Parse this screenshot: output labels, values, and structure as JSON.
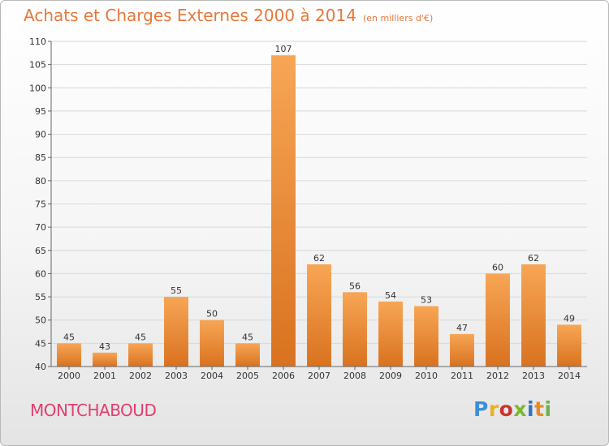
{
  "title": "Achats et Charges Externes 2000 à 2014",
  "subtitle": "(en milliers d'€)",
  "commune": "MONTCHABOUD",
  "logo": {
    "text": "Proxiti",
    "letters": [
      "P",
      "r",
      "o",
      "x",
      "i",
      "t",
      "i"
    ]
  },
  "colors": {
    "title": "#e8773a",
    "commune": "#e04070",
    "bar_light": "#f7a655",
    "bar_dark": "#d9721f",
    "grid": "#d8d8d8"
  },
  "chart_data": {
    "type": "bar",
    "title": "Achats et Charges Externes 2000 à 2014",
    "subtitle": "(en milliers d'€)",
    "categories": [
      "2000",
      "2001",
      "2002",
      "2003",
      "2004",
      "2005",
      "2006",
      "2007",
      "2008",
      "2009",
      "2010",
      "2011",
      "2012",
      "2013",
      "2014"
    ],
    "values": [
      45,
      43,
      45,
      55,
      50,
      45,
      107,
      62,
      56,
      54,
      53,
      47,
      60,
      62,
      49
    ],
    "ylim": [
      40,
      110
    ],
    "yticks": [
      40,
      45,
      50,
      55,
      60,
      65,
      70,
      75,
      80,
      85,
      90,
      95,
      100,
      105,
      110
    ],
    "grid": "horizontal",
    "data_labels": true,
    "xlabel": "",
    "ylabel": ""
  }
}
